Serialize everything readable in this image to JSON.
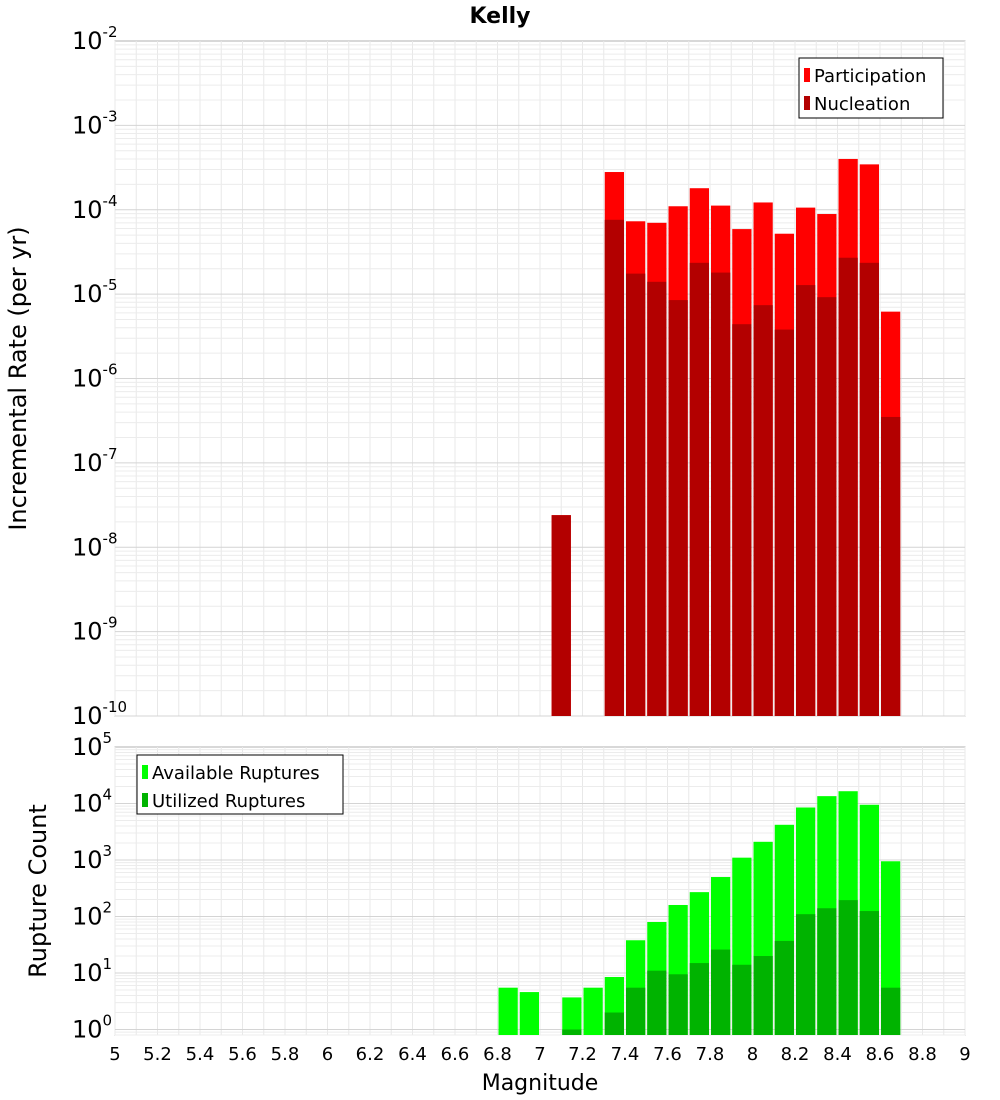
{
  "chart_data": [
    {
      "type": "bar",
      "title": "Kelly",
      "xlabel": "",
      "ylabel": "Incremental Rate (per yr)",
      "y_scale": "log",
      "ylim": [
        1e-10,
        0.01
      ],
      "xlim": [
        5,
        9
      ],
      "grid": true,
      "legend_position": "top-right",
      "bin_width": 0.1,
      "y_ticks": [
        {
          "base": "10",
          "exp": "-2",
          "value": 0.01
        },
        {
          "base": "10",
          "exp": "-3",
          "value": 0.001
        },
        {
          "base": "10",
          "exp": "-4",
          "value": 0.0001
        },
        {
          "base": "10",
          "exp": "-5",
          "value": 1e-05
        },
        {
          "base": "10",
          "exp": "-6",
          "value": 1e-06
        },
        {
          "base": "10",
          "exp": "-7",
          "value": 1e-07
        },
        {
          "base": "10",
          "exp": "-8",
          "value": 1e-08
        },
        {
          "base": "10",
          "exp": "-9",
          "value": 1e-09
        },
        {
          "base": "10",
          "exp": "-10",
          "value": 1e-10
        }
      ],
      "series": [
        {
          "name": "Participation",
          "color": "#ff0000",
          "points": [
            {
              "x": 7.1,
              "y": 2.4e-08
            },
            {
              "x": 7.35,
              "y": 0.00028
            },
            {
              "x": 7.45,
              "y": 7.3e-05
            },
            {
              "x": 7.55,
              "y": 7e-05
            },
            {
              "x": 7.65,
              "y": 0.00011
            },
            {
              "x": 7.75,
              "y": 0.00018
            },
            {
              "x": 7.85,
              "y": 0.000112
            },
            {
              "x": 7.95,
              "y": 5.9e-05
            },
            {
              "x": 8.05,
              "y": 0.000122
            },
            {
              "x": 8.15,
              "y": 5.2e-05
            },
            {
              "x": 8.25,
              "y": 0.000106
            },
            {
              "x": 8.35,
              "y": 8.9e-05
            },
            {
              "x": 8.45,
              "y": 0.0004
            },
            {
              "x": 8.55,
              "y": 0.000345
            },
            {
              "x": 8.65,
              "y": 6.2e-06
            }
          ]
        },
        {
          "name": "Nucleation",
          "color": "#b30000",
          "points": [
            {
              "x": 7.1,
              "y": 2.4e-08
            },
            {
              "x": 7.35,
              "y": 7.6e-05
            },
            {
              "x": 7.45,
              "y": 1.75e-05
            },
            {
              "x": 7.55,
              "y": 1.4e-05
            },
            {
              "x": 7.65,
              "y": 8.5e-06
            },
            {
              "x": 7.75,
              "y": 2.35e-05
            },
            {
              "x": 7.85,
              "y": 1.8e-05
            },
            {
              "x": 7.95,
              "y": 4.4e-06
            },
            {
              "x": 8.05,
              "y": 7.4e-06
            },
            {
              "x": 8.15,
              "y": 3.8e-06
            },
            {
              "x": 8.25,
              "y": 1.28e-05
            },
            {
              "x": 8.35,
              "y": 9.2e-06
            },
            {
              "x": 8.45,
              "y": 2.7e-05
            },
            {
              "x": 8.55,
              "y": 2.35e-05
            },
            {
              "x": 8.65,
              "y": 3.5e-07
            }
          ]
        }
      ]
    },
    {
      "type": "bar",
      "title": "",
      "xlabel": "Magnitude",
      "ylabel": "Rupture Count",
      "y_scale": "log",
      "ylim": [
        0.8,
        100000.0
      ],
      "xlim": [
        5,
        9
      ],
      "grid": true,
      "legend_position": "top-left",
      "bin_width": 0.1,
      "x_ticks": [
        "5",
        "5.2",
        "5.4",
        "5.6",
        "5.8",
        "6",
        "6.2",
        "6.4",
        "6.6",
        "6.8",
        "7",
        "7.2",
        "7.4",
        "7.6",
        "7.8",
        "8",
        "8.2",
        "8.4",
        "8.6",
        "8.8",
        "9"
      ],
      "y_ticks": [
        {
          "base": "10",
          "exp": "5",
          "value": 100000.0
        },
        {
          "base": "10",
          "exp": "4",
          "value": 10000.0
        },
        {
          "base": "10",
          "exp": "3",
          "value": 1000.0
        },
        {
          "base": "10",
          "exp": "2",
          "value": 100.0
        },
        {
          "base": "10",
          "exp": "1",
          "value": 10.0
        },
        {
          "base": "10",
          "exp": "0",
          "value": 1
        }
      ],
      "series": [
        {
          "name": "Available Ruptures",
          "color": "#00ff00",
          "points": [
            {
              "x": 6.85,
              "y": 5.5
            },
            {
              "x": 6.95,
              "y": 4.6
            },
            {
              "x": 7.15,
              "y": 3.7
            },
            {
              "x": 7.25,
              "y": 5.5
            },
            {
              "x": 7.35,
              "y": 8.5
            },
            {
              "x": 7.45,
              "y": 38
            },
            {
              "x": 7.55,
              "y": 80
            },
            {
              "x": 7.65,
              "y": 160
            },
            {
              "x": 7.75,
              "y": 270
            },
            {
              "x": 7.85,
              "y": 500
            },
            {
              "x": 7.95,
              "y": 1100
            },
            {
              "x": 8.05,
              "y": 2100
            },
            {
              "x": 8.15,
              "y": 4200
            },
            {
              "x": 8.25,
              "y": 8500
            },
            {
              "x": 8.35,
              "y": 13500
            },
            {
              "x": 8.45,
              "y": 16500
            },
            {
              "x": 8.55,
              "y": 9500
            },
            {
              "x": 8.65,
              "y": 950
            }
          ]
        },
        {
          "name": "Utilized Ruptures",
          "color": "#00b300",
          "points": [
            {
              "x": 7.15,
              "y": 1
            },
            {
              "x": 7.35,
              "y": 2
            },
            {
              "x": 7.45,
              "y": 5.5
            },
            {
              "x": 7.55,
              "y": 11
            },
            {
              "x": 7.65,
              "y": 9.5
            },
            {
              "x": 7.75,
              "y": 15
            },
            {
              "x": 7.85,
              "y": 26
            },
            {
              "x": 7.95,
              "y": 14
            },
            {
              "x": 8.05,
              "y": 20
            },
            {
              "x": 8.15,
              "y": 37
            },
            {
              "x": 8.25,
              "y": 110
            },
            {
              "x": 8.35,
              "y": 140
            },
            {
              "x": 8.45,
              "y": 195
            },
            {
              "x": 8.55,
              "y": 125
            },
            {
              "x": 8.65,
              "y": 5.5
            }
          ]
        }
      ]
    }
  ]
}
